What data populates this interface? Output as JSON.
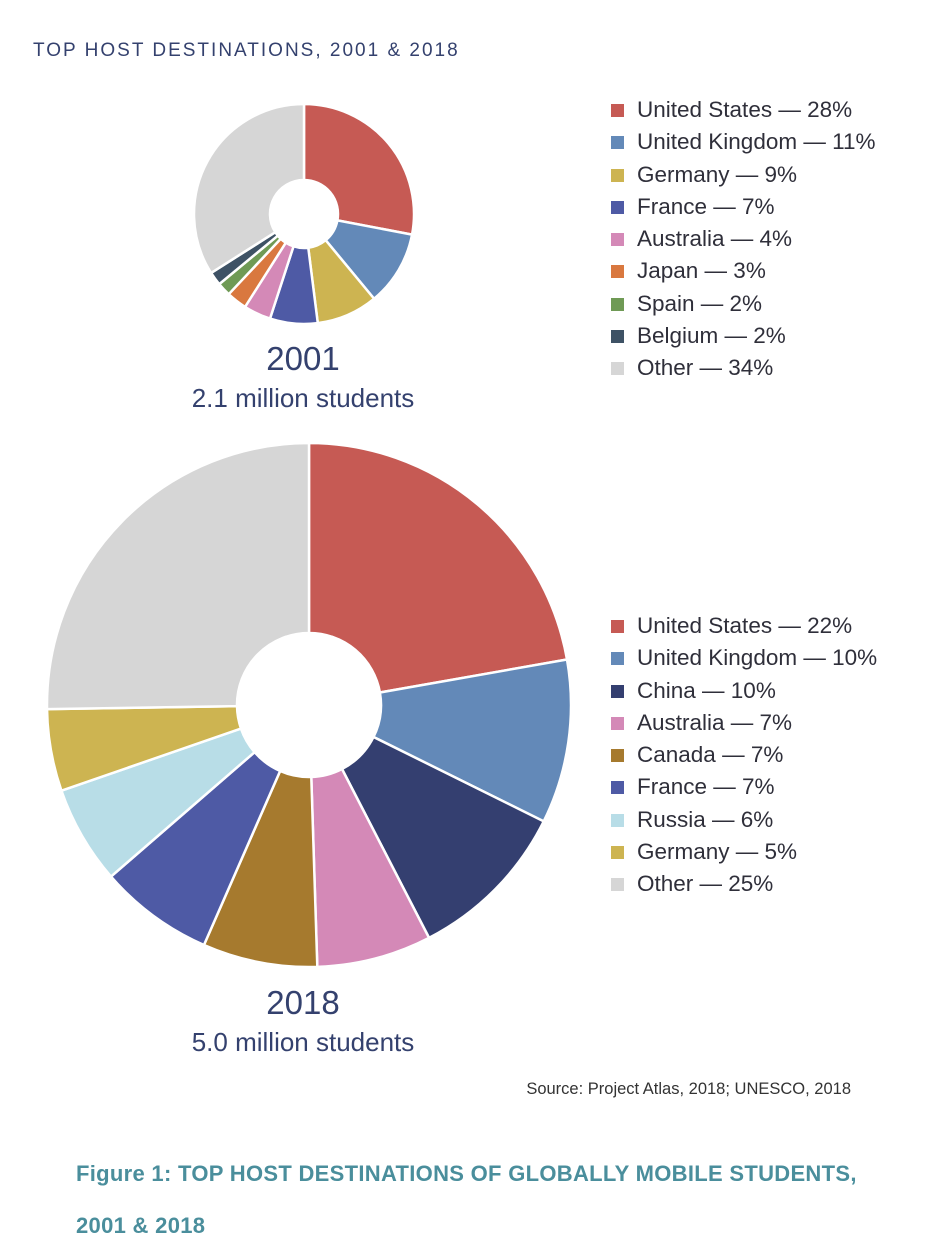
{
  "header": "TOP HOST DESTINATIONS, 2001 & 2018",
  "chart_data": [
    {
      "type": "pie",
      "variant": "donut",
      "title": "2001",
      "subtitle": "2.1 million students",
      "legend_position": "right",
      "series": [
        {
          "name": "United States",
          "value": 28,
          "label": "United States — 28%",
          "color": "#c65a54"
        },
        {
          "name": "United Kingdom",
          "value": 11,
          "label": "United Kingdom — 11%",
          "color": "#6389b8"
        },
        {
          "name": "Germany",
          "value": 9,
          "label": "Germany — 9%",
          "color": "#cdb451"
        },
        {
          "name": "France",
          "value": 7,
          "label": "France — 7%",
          "color": "#4e5aa5"
        },
        {
          "name": "Australia",
          "value": 4,
          "label": "Australia — 4%",
          "color": "#d489b7"
        },
        {
          "name": "Japan",
          "value": 3,
          "label": "Japan — 3%",
          "color": "#d9783f"
        },
        {
          "name": "Spain",
          "value": 2,
          "label": "Spain — 2%",
          "color": "#6f9a55"
        },
        {
          "name": "Belgium",
          "value": 2,
          "label": "Belgium — 2%",
          "color": "#3e5265"
        },
        {
          "name": "Other",
          "value": 34,
          "label": "Other — 34%",
          "color": "#d6d6d6"
        }
      ]
    },
    {
      "type": "pie",
      "variant": "donut",
      "title": "2018",
      "subtitle": "5.0 million students",
      "legend_position": "right",
      "series": [
        {
          "name": "United States",
          "value": 22,
          "label": "United States — 22%",
          "color": "#c65a54"
        },
        {
          "name": "United Kingdom",
          "value": 10,
          "label": "United Kingdom — 10%",
          "color": "#6389b8"
        },
        {
          "name": "China",
          "value": 10,
          "label": "China — 10%",
          "color": "#343f70"
        },
        {
          "name": "Australia",
          "value": 7,
          "label": "Australia — 7%",
          "color": "#d489b7"
        },
        {
          "name": "Canada",
          "value": 7,
          "label": "Canada — 7%",
          "color": "#a67a2e"
        },
        {
          "name": "France",
          "value": 7,
          "label": "France — 7%",
          "color": "#4e5aa5"
        },
        {
          "name": "Russia",
          "value": 6,
          "label": "Russia — 6%",
          "color": "#b8dde7"
        },
        {
          "name": "Germany",
          "value": 5,
          "label": "Germany — 5%",
          "color": "#cdb451"
        },
        {
          "name": "Other",
          "value": 25,
          "label": "Other — 25%",
          "color": "#d6d6d6"
        }
      ]
    }
  ],
  "source": "Source: Project Atlas, 2018; UNESCO, 2018",
  "caption": "Figure 1: TOP HOST DESTINATIONS OF GLOBALLY MOBILE STUDENTS, 2001 & 2018"
}
